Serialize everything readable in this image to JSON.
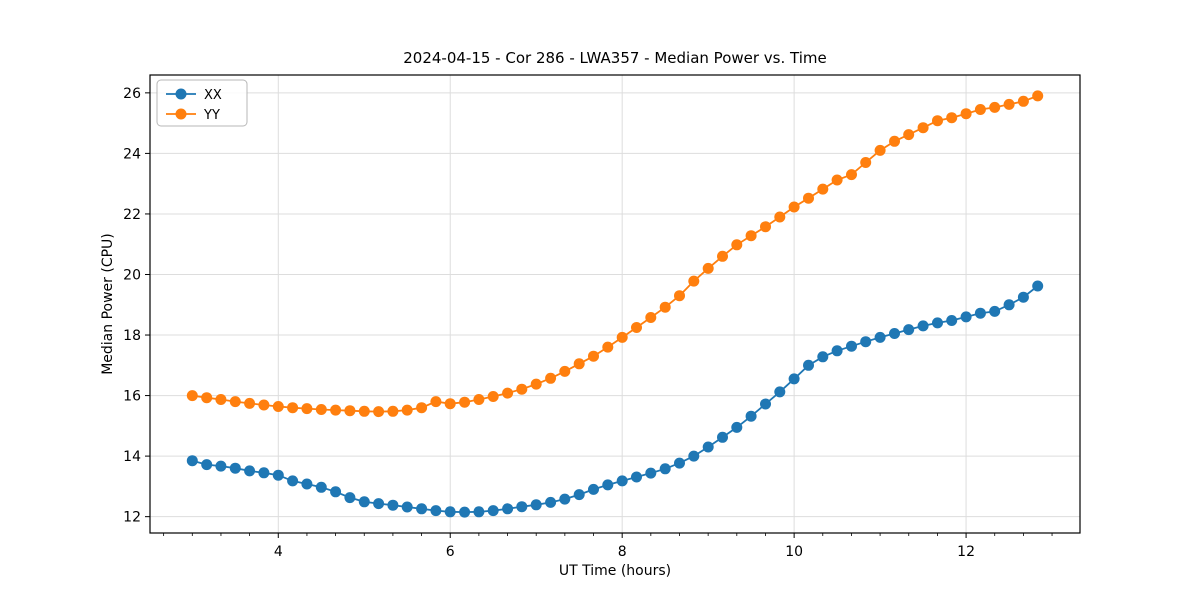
{
  "figure": {
    "background": "#ffffff"
  },
  "chart_data": {
    "type": "line",
    "title": "2024-04-15 - Cor 286 - LWA357 - Median Power vs. Time",
    "xlabel": "UT Time (hours)",
    "ylabel": "Median Power (CPU)",
    "xlim": [
      2.508,
      13.325
    ],
    "ylim": [
      11.46,
      26.59
    ],
    "xticks": [
      4,
      6,
      8,
      10,
      12
    ],
    "yticks": [
      12,
      14,
      16,
      18,
      20,
      22,
      24,
      26
    ],
    "x_minor_tick_step": 0.33333,
    "grid": true,
    "grid_color": "#dddddd",
    "legend_position": "upper left",
    "x": [
      3.0,
      3.167,
      3.333,
      3.5,
      3.667,
      3.833,
      4.0,
      4.167,
      4.333,
      4.5,
      4.667,
      4.833,
      5.0,
      5.167,
      5.333,
      5.5,
      5.667,
      5.833,
      6.0,
      6.167,
      6.333,
      6.5,
      6.667,
      6.833,
      7.0,
      7.167,
      7.333,
      7.5,
      7.667,
      7.833,
      8.0,
      8.167,
      8.333,
      8.5,
      8.667,
      8.833,
      9.0,
      9.167,
      9.333,
      9.5,
      9.667,
      9.833,
      10.0,
      10.167,
      10.333,
      10.5,
      10.667,
      10.833,
      11.0,
      11.167,
      11.333,
      11.5,
      11.667,
      11.833,
      12.0,
      12.167,
      12.333,
      12.5,
      12.667,
      12.833
    ],
    "series": [
      {
        "name": "XX",
        "color": "#1f77b4",
        "values": [
          13.85,
          13.72,
          13.67,
          13.6,
          13.51,
          13.45,
          13.37,
          13.18,
          13.08,
          12.97,
          12.82,
          12.63,
          12.49,
          12.43,
          12.38,
          12.32,
          12.26,
          12.2,
          12.16,
          12.15,
          12.16,
          12.2,
          12.26,
          12.33,
          12.39,
          12.47,
          12.58,
          12.73,
          12.9,
          13.05,
          13.18,
          13.31,
          13.44,
          13.58,
          13.77,
          14.0,
          14.3,
          14.62,
          14.95,
          15.32,
          15.72,
          16.12,
          16.55,
          17.0,
          17.28,
          17.48,
          17.63,
          17.78,
          17.92,
          18.05,
          18.18,
          18.3,
          18.4,
          18.48,
          18.6,
          18.72,
          18.78,
          19.0,
          19.25,
          19.62
        ]
      },
      {
        "name": "YY",
        "color": "#ff7f0e",
        "values": [
          16.0,
          15.93,
          15.87,
          15.8,
          15.74,
          15.69,
          15.64,
          15.6,
          15.57,
          15.54,
          15.52,
          15.5,
          15.48,
          15.47,
          15.48,
          15.52,
          15.6,
          15.8,
          15.73,
          15.78,
          15.87,
          15.97,
          16.08,
          16.21,
          16.38,
          16.57,
          16.8,
          17.05,
          17.3,
          17.6,
          17.92,
          18.25,
          18.58,
          18.92,
          19.3,
          19.78,
          20.2,
          20.6,
          20.98,
          21.28,
          21.58,
          21.9,
          22.23,
          22.52,
          22.82,
          23.12,
          23.3,
          23.7,
          24.1,
          24.4,
          24.62,
          24.85,
          25.08,
          25.18,
          25.31,
          25.45,
          25.52,
          25.62,
          25.72,
          25.9
        ]
      }
    ],
    "marker": "circle",
    "marker_radius": 5.5,
    "line_width": 1.8
  },
  "legend": {
    "items": [
      {
        "label": "XX"
      },
      {
        "label": "YY"
      }
    ]
  }
}
